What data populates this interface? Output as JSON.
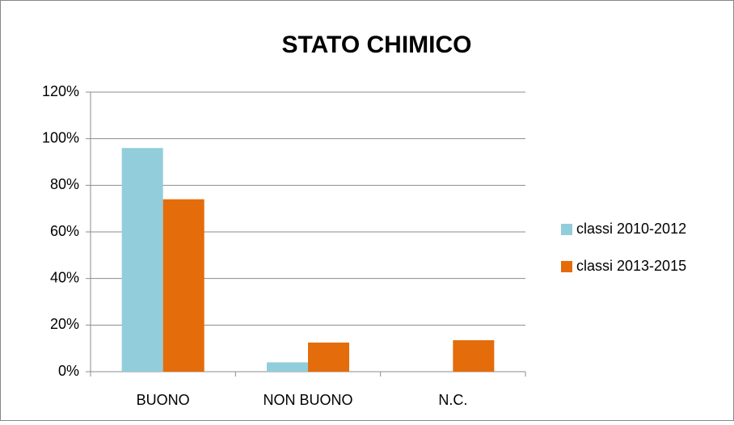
{
  "chart_data": {
    "type": "bar",
    "title": "STATO CHIMICO",
    "categories": [
      "BUONO",
      "NON BUONO",
      "N.C."
    ],
    "series": [
      {
        "name": "classi 2010-2012",
        "color": "#92cddc",
        "values": [
          96,
          4,
          0
        ]
      },
      {
        "name": "classi 2013-2015",
        "color": "#e46c0a",
        "values": [
          74,
          12.5,
          13.5
        ]
      }
    ],
    "ylim": [
      0,
      120
    ],
    "yticks": [
      {
        "value": 0,
        "label": "0%"
      },
      {
        "value": 20,
        "label": "20%"
      },
      {
        "value": 40,
        "label": "40%"
      },
      {
        "value": 60,
        "label": "60%"
      },
      {
        "value": 80,
        "label": "80%"
      },
      {
        "value": 100,
        "label": "100%"
      },
      {
        "value": 120,
        "label": "120%"
      }
    ],
    "grid": true,
    "legend": "right"
  }
}
